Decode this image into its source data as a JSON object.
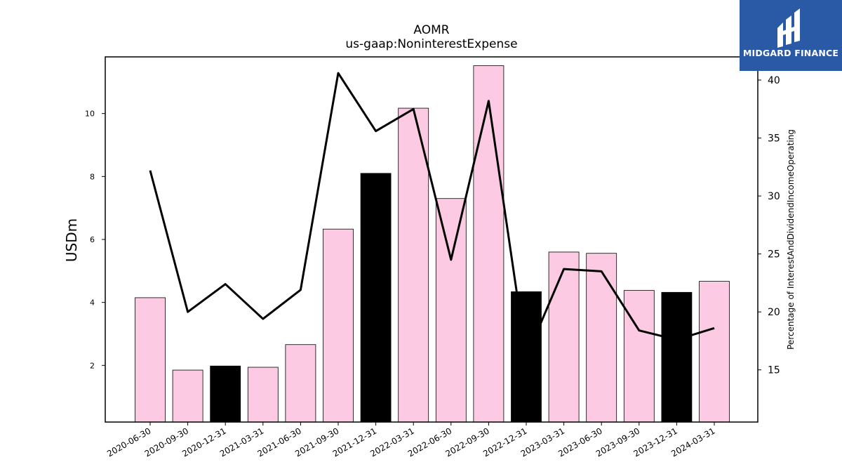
{
  "chart_data": {
    "type": "bar+line",
    "title": "AOMR",
    "subtitle": "us-gaap:NoninterestExpense",
    "ylabel_left": "USDm",
    "ylabel_right": "Percentage of InterestAndDividendIncomeOperating",
    "categories": [
      "2020-06-30",
      "2020-09-30",
      "2020-12-31",
      "2021-03-31",
      "2021-06-30",
      "2021-09-30",
      "2021-12-31",
      "2022-03-31",
      "2022-06-30",
      "2022-09-30",
      "2022-12-31",
      "2023-03-31",
      "2023-06-30",
      "2023-09-30",
      "2023-12-31",
      "2024-03-31"
    ],
    "bars": [
      4.15,
      1.85,
      1.98,
      1.94,
      2.66,
      6.33,
      8.1,
      10.17,
      7.3,
      11.52,
      4.34,
      5.6,
      5.56,
      4.38,
      4.32,
      4.67
    ],
    "bar_colors": [
      "#fccbe3",
      "#fccbe3",
      "#000000",
      "#fccbe3",
      "#fccbe3",
      "#fccbe3",
      "#000000",
      "#fccbe3",
      "#fccbe3",
      "#fccbe3",
      "#000000",
      "#fccbe3",
      "#fccbe3",
      "#fccbe3",
      "#000000",
      "#fccbe3"
    ],
    "line": [
      32.2,
      20.0,
      22.4,
      19.4,
      21.9,
      40.6,
      35.6,
      37.5,
      24.5,
      38.2,
      16.1,
      23.7,
      23.5,
      18.4,
      17.6,
      18.6
    ],
    "line_color": "#000000",
    "ylim_left": [
      0.2,
      11.8
    ],
    "yticks_left": [
      2,
      4,
      6,
      8,
      10
    ],
    "ylim_right": [
      10.5,
      42.0
    ],
    "yticks_right": [
      15,
      20,
      25,
      30,
      35,
      40
    ]
  },
  "logo": {
    "text": "MIDGARD FINANCE",
    "icon": "midgard-finance-logo-icon",
    "background": "#2a5aa6"
  }
}
